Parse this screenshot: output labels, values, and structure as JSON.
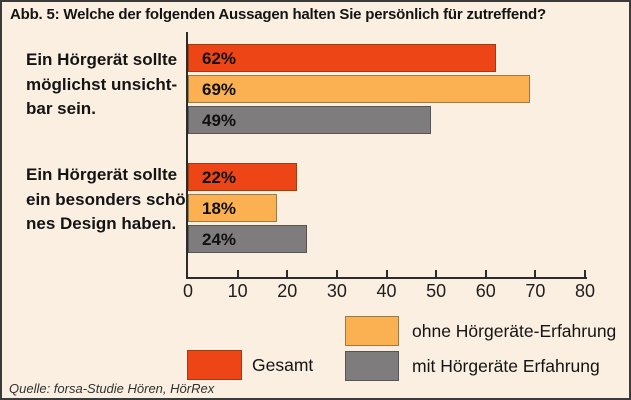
{
  "title": "Abb. 5: Welche der folgenden Aussagen halten Sie persönlich für zutreffend?",
  "source": "Quelle: forsa-Studie Hören, HörRex",
  "colors": {
    "background": "#FBEFE1",
    "frame_border": "#3B3B3B",
    "axis": "#2B2B2B",
    "gesamt": "#EE4517",
    "ohne_erfahrung": "#FBB052",
    "mit_erfahrung": "#7E7C7D"
  },
  "legend": {
    "items": [
      {
        "label": "Gesamt",
        "color": "#EE4517",
        "border": "#A23C10"
      },
      {
        "label": "ohne Hörgeräte-Erfahrung",
        "color": "#FBB052",
        "border": "#9C7A45"
      },
      {
        "label": "mit Hörgeräte Erfahrung",
        "color": "#7E7C7D",
        "border": "#565452"
      }
    ]
  },
  "chart_data": {
    "type": "bar",
    "orientation": "horizontal",
    "title": "Abb. 5: Welche der folgenden Aussagen halten Sie persönlich für zutreffend?",
    "categories": [
      "Ein Hörgerät sollte möglichst unsichtbar sein.",
      "Ein Hörgerät sollte ein besonders schönes Design haben."
    ],
    "categories_display": [
      "Ein Hörgerät sollte\nmöglichst unsicht-\nbar sein.",
      "Ein Hörgerät sollte\nein besonders schö-\nnes Design haben."
    ],
    "series": [
      {
        "name": "Gesamt",
        "color": "#EE4517",
        "border": "#A23C10",
        "values": [
          62,
          22
        ]
      },
      {
        "name": "ohne Hörgeräte-Erfahrung",
        "color": "#FBB052",
        "border": "#9C7A45",
        "values": [
          69,
          18
        ]
      },
      {
        "name": "mit Hörgeräte Erfahrung",
        "color": "#7E7C7D",
        "border": "#565452",
        "values": [
          49,
          24
        ]
      }
    ],
    "value_labels": [
      [
        "62%",
        "22%"
      ],
      [
        "69%",
        "18%"
      ],
      [
        "49%",
        "24%"
      ]
    ],
    "xlim": [
      0,
      80
    ],
    "xticks": [
      0,
      10,
      20,
      30,
      40,
      50,
      60,
      70,
      80
    ],
    "grid": false,
    "legend_position": "bottom"
  }
}
